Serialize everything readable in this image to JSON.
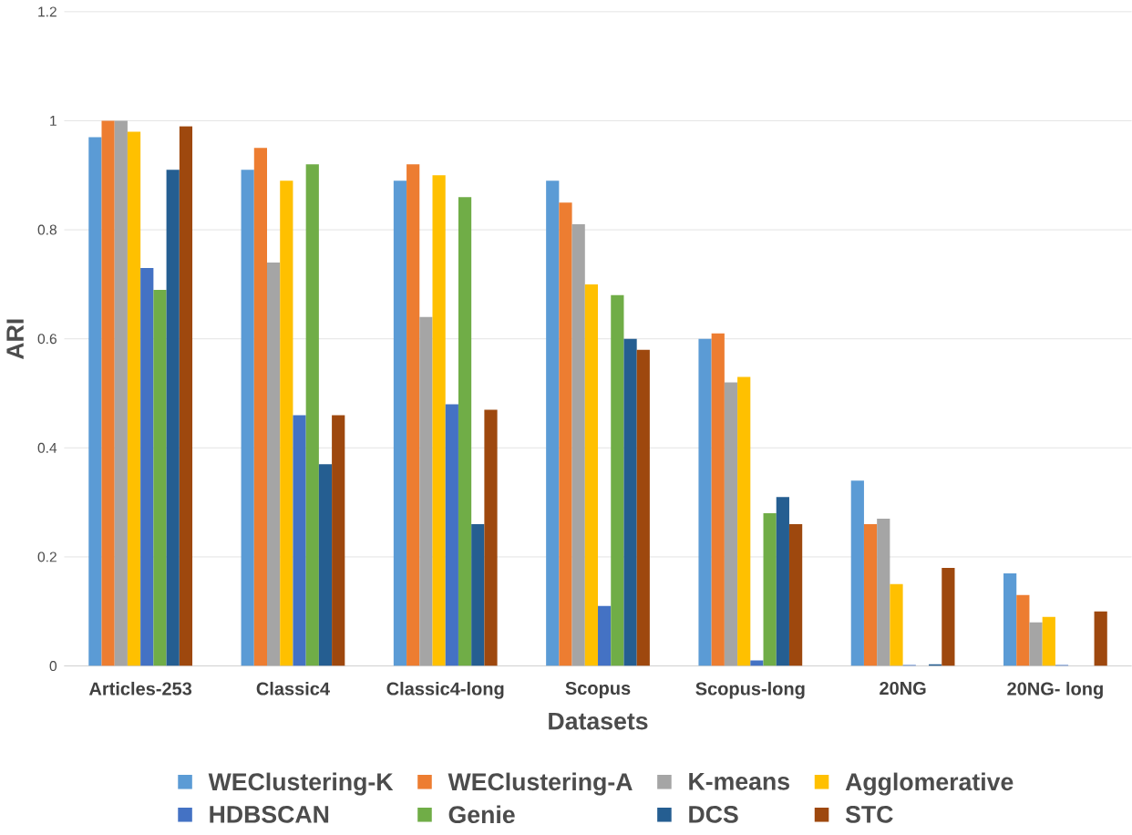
{
  "chart_data": {
    "type": "bar",
    "xlabel": "Datasets",
    "ylabel": "ARI",
    "categories": [
      "Articles-253",
      "Classic4",
      "Classic4-long",
      "Scopus",
      "Scopus-long",
      "20NG",
      "20NG- long"
    ],
    "series": [
      {
        "name": "WEClustering-K",
        "color": "#5b9bd5",
        "values": [
          0.97,
          0.91,
          0.89,
          0.89,
          0.6,
          0.34,
          0.17
        ]
      },
      {
        "name": "WEClustering-A",
        "color": "#ed7d31",
        "values": [
          1.0,
          0.95,
          0.92,
          0.85,
          0.61,
          0.26,
          0.13
        ]
      },
      {
        "name": "K-means",
        "color": "#a5a5a5",
        "values": [
          1.0,
          0.74,
          0.64,
          0.81,
          0.52,
          0.27,
          0.08
        ]
      },
      {
        "name": "Agglomerative",
        "color": "#ffc000",
        "values": [
          0.98,
          0.89,
          0.9,
          0.7,
          0.53,
          0.15,
          0.09
        ]
      },
      {
        "name": "HDBSCAN",
        "color": "#4472c4",
        "values": [
          0.73,
          0.46,
          0.48,
          0.11,
          0.01,
          0.002,
          0.002
        ]
      },
      {
        "name": "Genie",
        "color": "#70ad47",
        "values": [
          0.69,
          0.92,
          0.86,
          0.68,
          0.28,
          0.0,
          0.0
        ]
      },
      {
        "name": "DCS",
        "color": "#255e91",
        "values": [
          0.91,
          0.37,
          0.26,
          0.6,
          0.31,
          0.003,
          0.0
        ]
      },
      {
        "name": "STC",
        "color": "#9e480e",
        "values": [
          0.99,
          0.46,
          0.47,
          0.58,
          0.26,
          0.18,
          0.1
        ]
      }
    ],
    "ylim": [
      0,
      1.2
    ],
    "yticks": [
      0,
      0.2,
      0.4,
      0.6,
      0.8,
      1,
      1.2
    ],
    "grid": "y",
    "legend": "bottom"
  }
}
